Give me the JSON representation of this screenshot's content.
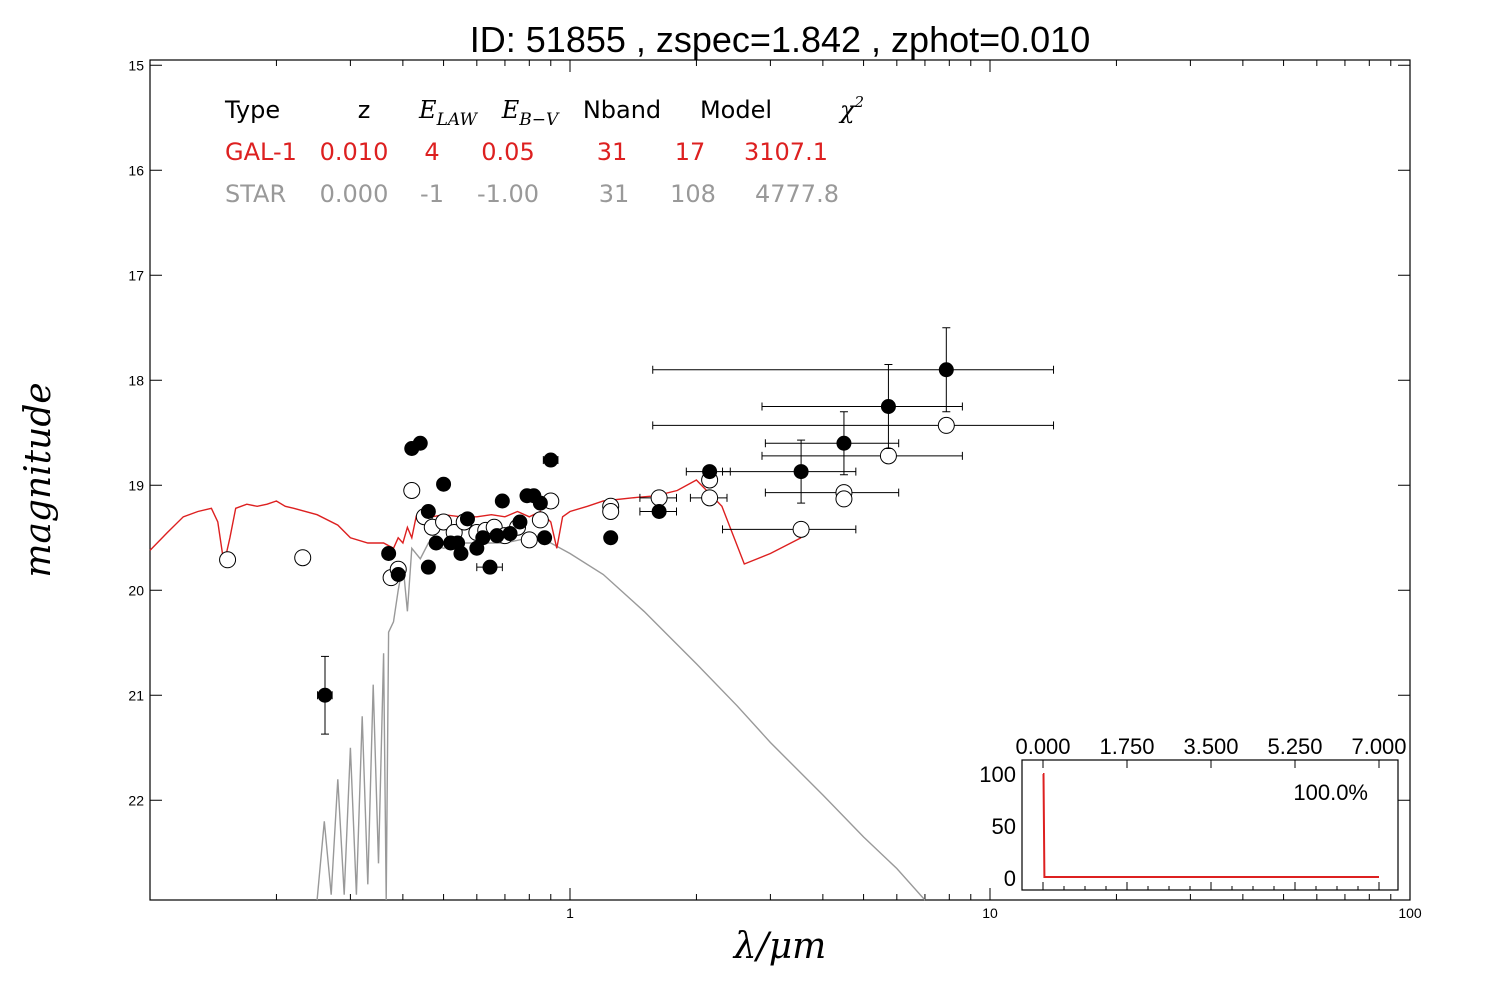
{
  "chart_data": {
    "type": "scatter",
    "title": "ID:  51855 , zspec=1.842 , zphot=0.010",
    "xlabel": "λ/μm",
    "ylabel": "magnitude",
    "xscale": "log",
    "xlim": [
      0.1,
      100
    ],
    "ylim": [
      22.95,
      14.95
    ],
    "x_ticks": [
      "1",
      "10",
      "100"
    ],
    "y_ticks": [
      "15",
      "16",
      "17",
      "18",
      "19",
      "20",
      "21",
      "22"
    ],
    "colors": {
      "gal": "#dd2020",
      "star": "#999999",
      "obs": "#000000"
    },
    "legend": {
      "headers": [
        "Type",
        "z",
        "E_LAW",
        "E_B−V",
        "Nband",
        "Model",
        "χ²"
      ],
      "rows": [
        {
          "name": "GAL-1",
          "values": [
            "GAL-1",
            "0.010",
            "4",
            "0.05",
            "31",
            "17",
            "3107.1"
          ],
          "color": "#dd2020"
        },
        {
          "name": "STAR",
          "values": [
            "STAR",
            "0.000",
            "-1",
            "-1.00",
            "31",
            "108",
            "4777.8"
          ],
          "color": "#999999"
        }
      ]
    },
    "observed_points": [
      [
        0.261,
        21.0,
        0.04,
        0.37
      ],
      [
        0.37,
        19.65,
        0.0,
        0.0
      ],
      [
        0.39,
        19.85,
        0.0,
        0.0
      ],
      [
        0.42,
        18.65,
        0.0,
        0.0
      ],
      [
        0.44,
        18.6,
        0.0,
        0.0
      ],
      [
        0.46,
        19.25,
        0.0,
        0.0
      ],
      [
        0.46,
        19.78,
        0.0,
        0.0
      ],
      [
        0.48,
        19.55,
        0.0,
        0.0
      ],
      [
        0.5,
        18.99,
        0.0,
        0.0
      ],
      [
        0.52,
        19.55,
        0.0,
        0.0
      ],
      [
        0.54,
        19.55,
        0.0,
        0.0
      ],
      [
        0.55,
        19.65,
        0.0,
        0.0
      ],
      [
        0.57,
        19.32,
        0.0,
        0.0
      ],
      [
        0.6,
        19.6,
        0.0,
        0.0
      ],
      [
        0.62,
        19.5,
        0.0,
        0.0
      ],
      [
        0.645,
        19.78,
        0.07,
        0.0
      ],
      [
        0.67,
        19.48,
        0.0,
        0.0
      ],
      [
        0.69,
        19.15,
        0.0,
        0.0
      ],
      [
        0.72,
        19.46,
        0.0,
        0.0
      ],
      [
        0.76,
        19.35,
        0.0,
        0.0
      ],
      [
        0.79,
        19.1,
        0.0,
        0.0
      ],
      [
        0.82,
        19.1,
        0.0,
        0.0
      ],
      [
        0.85,
        19.17,
        0.0,
        0.0
      ],
      [
        0.87,
        19.5,
        0.0,
        0.0
      ],
      [
        0.9,
        18.76,
        0.04,
        0.0
      ],
      [
        1.25,
        19.5,
        0.03,
        0.0
      ],
      [
        1.63,
        19.25,
        0.1,
        0.0
      ],
      [
        2.15,
        18.87,
        0.12,
        0.05
      ],
      [
        3.55,
        18.87,
        0.35,
        0.3
      ],
      [
        4.49,
        18.6,
        0.35,
        0.3
      ],
      [
        5.73,
        18.25,
        0.5,
        0.4
      ],
      [
        7.87,
        17.9,
        0.8,
        0.4
      ]
    ],
    "model_points": [
      [
        0.153,
        19.71,
        0.0
      ],
      [
        0.231,
        19.69,
        0.03
      ],
      [
        0.375,
        19.88,
        0.0
      ],
      [
        0.39,
        19.8,
        0.0
      ],
      [
        0.42,
        19.05,
        0.0
      ],
      [
        0.45,
        19.3,
        0.0
      ],
      [
        0.47,
        19.4,
        0.0
      ],
      [
        0.5,
        19.35,
        0.0
      ],
      [
        0.53,
        19.45,
        0.0
      ],
      [
        0.56,
        19.35,
        0.0
      ],
      [
        0.6,
        19.45,
        0.0
      ],
      [
        0.63,
        19.43,
        0.0
      ],
      [
        0.66,
        19.4,
        0.0
      ],
      [
        0.7,
        19.48,
        0.0
      ],
      [
        0.75,
        19.4,
        0.0
      ],
      [
        0.8,
        19.52,
        0.0
      ],
      [
        0.85,
        19.33,
        0.0
      ],
      [
        0.9,
        19.15,
        0.0
      ],
      [
        1.25,
        19.2,
        0.03
      ],
      [
        1.25,
        19.25,
        0.0
      ],
      [
        1.63,
        19.12,
        0.1
      ],
      [
        2.15,
        18.95,
        0.0
      ],
      [
        2.15,
        19.12,
        0.1
      ],
      [
        3.55,
        19.42,
        0.35
      ],
      [
        4.49,
        19.07,
        0.35
      ],
      [
        4.49,
        19.13,
        0.0
      ],
      [
        5.73,
        18.72,
        0.5
      ],
      [
        7.87,
        18.43,
        0.8
      ]
    ],
    "gal_template": [
      [
        0.1,
        19.62
      ],
      [
        0.11,
        19.45
      ],
      [
        0.12,
        19.3
      ],
      [
        0.13,
        19.25
      ],
      [
        0.14,
        19.22
      ],
      [
        0.145,
        19.35
      ],
      [
        0.15,
        19.75
      ],
      [
        0.155,
        19.5
      ],
      [
        0.16,
        19.22
      ],
      [
        0.17,
        19.18
      ],
      [
        0.18,
        19.2
      ],
      [
        0.19,
        19.18
      ],
      [
        0.2,
        19.15
      ],
      [
        0.21,
        19.2
      ],
      [
        0.22,
        19.22
      ],
      [
        0.25,
        19.28
      ],
      [
        0.28,
        19.38
      ],
      [
        0.3,
        19.5
      ],
      [
        0.33,
        19.55
      ],
      [
        0.36,
        19.55
      ],
      [
        0.38,
        19.6
      ],
      [
        0.39,
        19.5
      ],
      [
        0.4,
        19.55
      ],
      [
        0.41,
        19.4
      ],
      [
        0.42,
        19.5
      ],
      [
        0.43,
        19.3
      ],
      [
        0.44,
        19.35
      ],
      [
        0.45,
        19.25
      ],
      [
        0.47,
        19.3
      ],
      [
        0.5,
        19.28
      ],
      [
        0.55,
        19.3
      ],
      [
        0.6,
        19.3
      ],
      [
        0.65,
        19.28
      ],
      [
        0.7,
        19.3
      ],
      [
        0.75,
        19.25
      ],
      [
        0.8,
        19.3
      ],
      [
        0.85,
        19.25
      ],
      [
        0.9,
        19.35
      ],
      [
        0.93,
        19.6
      ],
      [
        0.96,
        19.3
      ],
      [
        1.0,
        19.25
      ],
      [
        1.1,
        19.2
      ],
      [
        1.2,
        19.15
      ],
      [
        1.4,
        19.12
      ],
      [
        1.6,
        19.1
      ],
      [
        1.8,
        19.05
      ],
      [
        2.0,
        18.95
      ],
      [
        2.3,
        19.2
      ],
      [
        2.6,
        19.75
      ],
      [
        3.0,
        19.65
      ],
      [
        3.55,
        19.5
      ]
    ],
    "star_template": [
      [
        0.25,
        22.95
      ],
      [
        0.26,
        22.2
      ],
      [
        0.27,
        22.9
      ],
      [
        0.28,
        21.8
      ],
      [
        0.29,
        22.9
      ],
      [
        0.3,
        21.5
      ],
      [
        0.31,
        22.9
      ],
      [
        0.32,
        21.2
      ],
      [
        0.33,
        22.8
      ],
      [
        0.34,
        20.9
      ],
      [
        0.35,
        22.6
      ],
      [
        0.36,
        20.6
      ],
      [
        0.365,
        22.95
      ],
      [
        0.37,
        20.4
      ],
      [
        0.38,
        20.3
      ],
      [
        0.39,
        20.0
      ],
      [
        0.4,
        19.75
      ],
      [
        0.41,
        20.2
      ],
      [
        0.42,
        19.6
      ],
      [
        0.44,
        19.7
      ],
      [
        0.46,
        19.55
      ],
      [
        0.5,
        19.6
      ],
      [
        0.55,
        19.55
      ],
      [
        0.6,
        19.55
      ],
      [
        0.7,
        19.55
      ],
      [
        0.8,
        19.5
      ],
      [
        0.9,
        19.55
      ],
      [
        1.0,
        19.65
      ],
      [
        1.2,
        19.85
      ],
      [
        1.5,
        20.2
      ],
      [
        2.0,
        20.7
      ],
      [
        2.5,
        21.1
      ],
      [
        3.0,
        21.45
      ],
      [
        4.0,
        21.95
      ],
      [
        5.0,
        22.35
      ],
      [
        6.0,
        22.65
      ],
      [
        7.0,
        22.95
      ]
    ],
    "pdf_inset": {
      "x_ticks": [
        "0.000",
        "1.750",
        "3.500",
        "5.250",
        "7.000"
      ],
      "y_ticks": [
        "100",
        "50",
        "0"
      ],
      "xlim": [
        0,
        7
      ],
      "ylim": [
        0,
        100
      ],
      "peak_label": "100.0%",
      "curve": [
        [
          0.0,
          100
        ],
        [
          0.01,
          100
        ],
        [
          0.03,
          1
        ],
        [
          7.0,
          1
        ]
      ]
    }
  }
}
